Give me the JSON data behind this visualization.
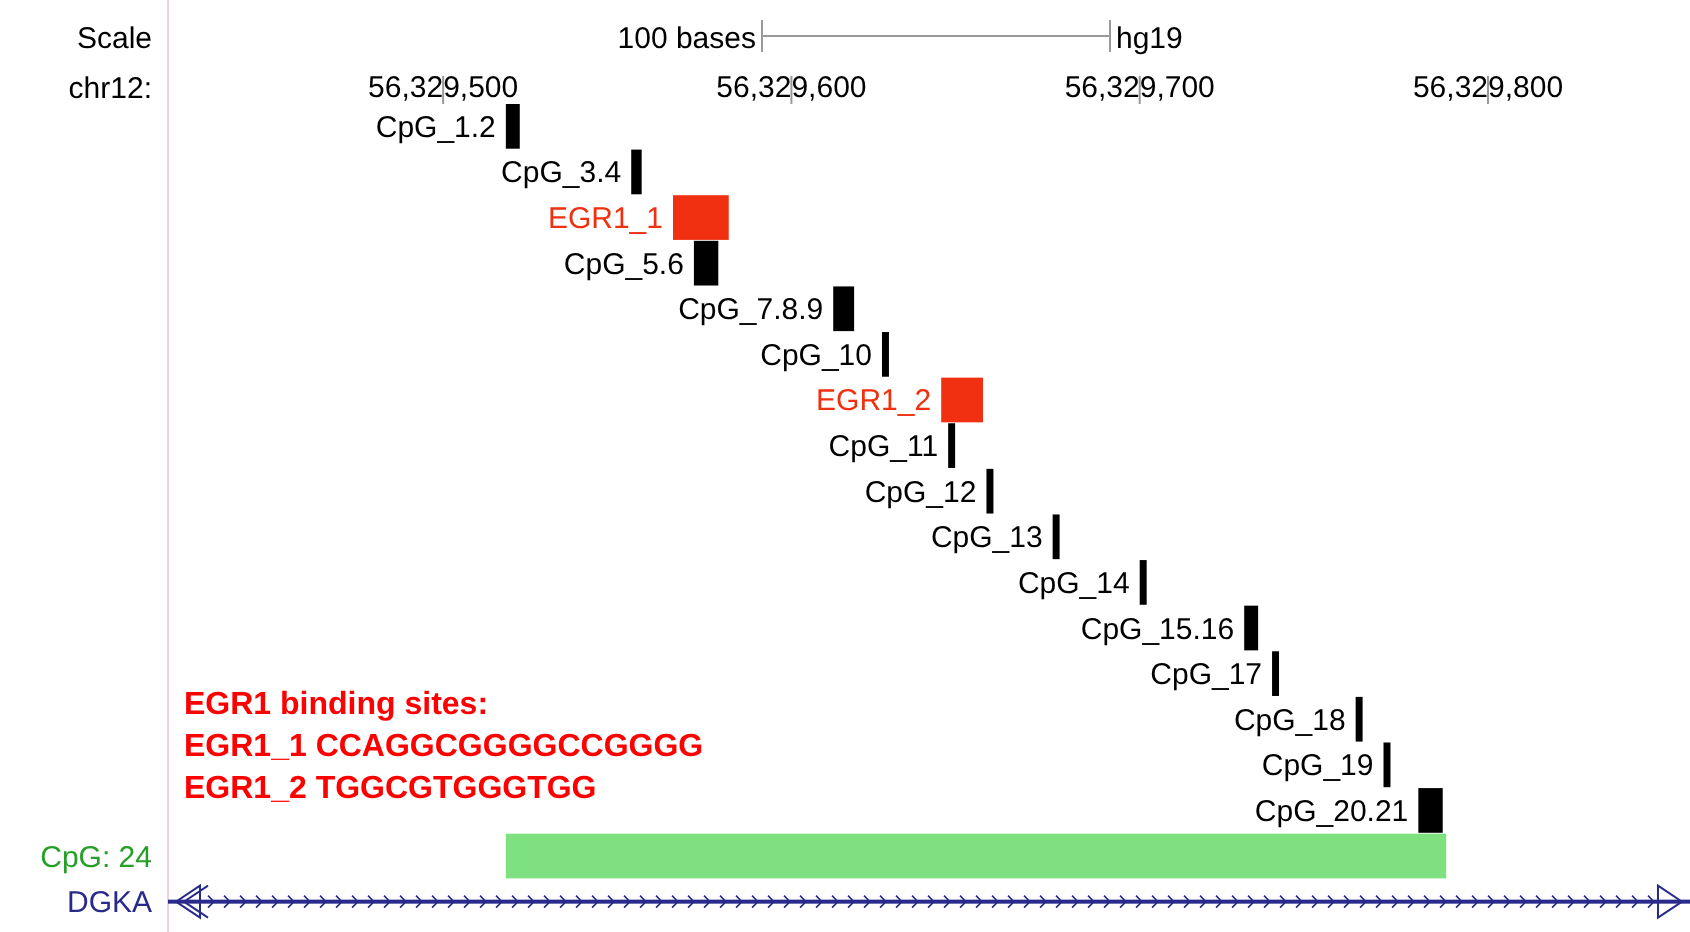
{
  "chart_data": {
    "type": "bar",
    "orientation": "horizontal",
    "categories": [
      "CpG_1.2",
      "CpG_3.4",
      "EGR1_1",
      "CpG_5.6",
      "CpG_7.8.9",
      "CpG_10",
      "EGR1_2",
      "CpG_11",
      "CpG_12",
      "CpG_13",
      "CpG_14",
      "CpG_15.16",
      "CpG_17",
      "CpG_18",
      "CpG_19",
      "CpG_20.21",
      "CpG: 24",
      "DGKA"
    ],
    "base": [
      56329518,
      56329554,
      56329566,
      56329572,
      56329612,
      56329626,
      56329643,
      56329645,
      56329656,
      56329675,
      56329700,
      56329730,
      56329738,
      56329762,
      56329770,
      56329780,
      56329518,
      56329421
    ],
    "values": [
      4,
      3,
      16,
      7,
      6,
      2,
      12,
      2,
      2,
      2,
      2,
      4,
      2,
      2,
      2,
      7,
      270,
      437
    ],
    "colors": [
      "#000000",
      "#000000",
      "#f03010",
      "#000000",
      "#000000",
      "#000000",
      "#f03010",
      "#000000",
      "#000000",
      "#000000",
      "#000000",
      "#000000",
      "#000000",
      "#000000",
      "#000000",
      "#000000",
      "#7ee07e",
      "#2a2a8a"
    ],
    "xlim": [
      56329421,
      56329858
    ],
    "xticks": [
      {
        "value": 56329500,
        "label": "56,329,500"
      },
      {
        "value": 56329600,
        "label": "56,329,600"
      },
      {
        "value": 56329700,
        "label": "56,329,700"
      },
      {
        "value": 56329800,
        "label": "56,329,800"
      }
    ],
    "xlabel": "chr12:",
    "annotations": [
      "Scale",
      "100 bases",
      "hg19",
      "EGR1 binding sites:",
      "EGR1_1 CCAGGCGGGGCCGGGG",
      "EGR1_2 TGGCGTGGGTGG"
    ]
  }
}
